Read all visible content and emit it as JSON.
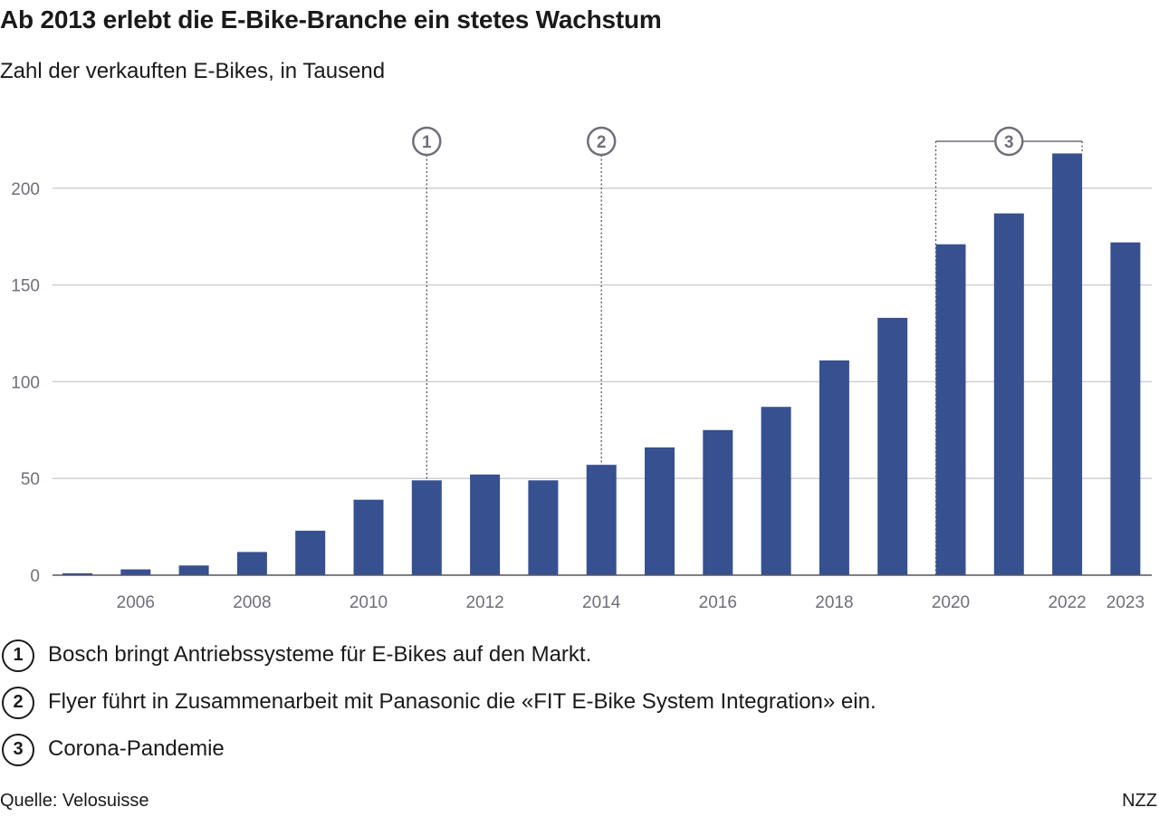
{
  "header": {
    "title": "Ab 2013 erlebt die E-Bike-Branche ein stetes Wachstum",
    "subtitle": "Zahl der verkauften E-Bikes, in Tausend"
  },
  "chart_data": {
    "type": "bar",
    "categories": [
      "2005",
      "2006",
      "2007",
      "2008",
      "2009",
      "2010",
      "2011",
      "2012",
      "2013",
      "2014",
      "2015",
      "2016",
      "2017",
      "2018",
      "2019",
      "2020",
      "2021",
      "2022",
      "2023"
    ],
    "values": [
      1,
      3,
      5,
      12,
      23,
      39,
      49,
      52,
      49,
      57,
      66,
      75,
      87,
      111,
      133,
      171,
      187,
      218,
      172
    ],
    "x_tick_labels": [
      "2006",
      "2008",
      "2010",
      "2012",
      "2014",
      "2016",
      "2018",
      "2020",
      "2022",
      "2023"
    ],
    "y_ticks": [
      0,
      50,
      100,
      150,
      200
    ],
    "ylim": [
      0,
      230
    ],
    "grid": true,
    "bar_color": "#37508f",
    "markers": [
      {
        "label": "1",
        "year": "2011"
      },
      {
        "label": "2",
        "year": "2014"
      },
      {
        "label": "3",
        "from": "2020",
        "to": "2022"
      }
    ]
  },
  "annotations": [
    {
      "num": "1",
      "text": "Bosch bringt Antriebssysteme für E-Bikes auf den Markt."
    },
    {
      "num": "2",
      "text": "Flyer führt in Zusammenarbeit mit Panasonic die «FIT E-Bike System Integration» ein."
    },
    {
      "num": "3",
      "text": "Corona-Pandemie"
    }
  ],
  "footer": {
    "source": "Quelle: Velosuisse",
    "brand": "NZZ"
  }
}
